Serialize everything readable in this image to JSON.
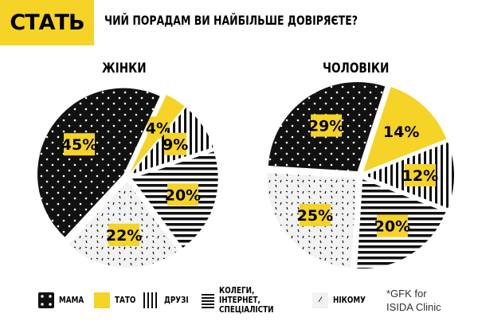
{
  "header": {
    "badge": "СТАТЬ",
    "question": "ЧИЙ ПОРАДАМ ВИ НАЙБІЛЬШЕ ДОВІРЯЄТЕ?"
  },
  "colors": {
    "yellow": "#f5d327",
    "black": "#111111",
    "white": "#ffffff"
  },
  "chart_data": [
    {
      "type": "pie",
      "title": "ЖІНКИ",
      "categories": [
        "ТАТО",
        "ДРУЗІ",
        "КОЛЕГИ, ІНТЕРНЕТ, СПЕЦІАЛІСТИ",
        "НІКОМУ",
        "МАМА"
      ],
      "values": [
        4,
        9,
        20,
        22,
        45
      ],
      "labels": [
        "4%",
        "9%",
        "20%",
        "22%",
        "45%"
      ]
    },
    {
      "type": "pie",
      "title": "ЧОЛОВІКИ",
      "categories": [
        "ТАТО",
        "ДРУЗІ",
        "КОЛЕГИ, ІНТЕРНЕТ, СПЕЦІАЛІСТИ",
        "НІКОМУ",
        "МАМА"
      ],
      "values": [
        14,
        12,
        20,
        25,
        29
      ],
      "labels": [
        "14%",
        "12%",
        "20%",
        "25%",
        "29%"
      ]
    }
  ],
  "legend": [
    {
      "label": "МАМА",
      "pattern": "dots-black"
    },
    {
      "label": "ТАТО",
      "pattern": "solid-yellow"
    },
    {
      "label": "ДРУЗІ",
      "pattern": "vertical-stripes"
    },
    {
      "label": "КОЛЕГИ, ІНТЕРНЕТ, СПЕЦІАЛІСТИ",
      "pattern": "horizontal-stripes"
    },
    {
      "label": "НІКОМУ",
      "pattern": "dashes-white"
    }
  ],
  "source": {
    "line1": "*GFK for",
    "line2": "ISIDA Clinic"
  }
}
